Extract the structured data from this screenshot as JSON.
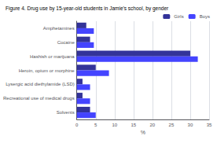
{
  "chart_data": {
    "type": "bar",
    "orientation": "horizontal",
    "title": "Figure 4. Drug use by 15-year-old students in Jamie's school, by gender",
    "categories": [
      "Amphetamines",
      "Cocaine",
      "Hashish or marijuana",
      "Heroin, opium or morphine",
      "Lysergic acid diethylamide (LSD)",
      "Recreational use of medical drugs",
      "Solvents"
    ],
    "series": [
      {
        "name": "Girls",
        "color": "#333399",
        "values": [
          2.5,
          3.5,
          30,
          5,
          1.5,
          1.5,
          3.5
        ]
      },
      {
        "name": "Boys",
        "color": "#4444ff",
        "values": [
          4.5,
          4.5,
          32,
          8.5,
          3.5,
          3.5,
          5
        ]
      }
    ],
    "xlim": [
      0,
      35
    ],
    "xticks": [
      0,
      5,
      10,
      15,
      20,
      25,
      30,
      35
    ],
    "xlabel": "%",
    "grid": true,
    "legend": "upper right"
  }
}
